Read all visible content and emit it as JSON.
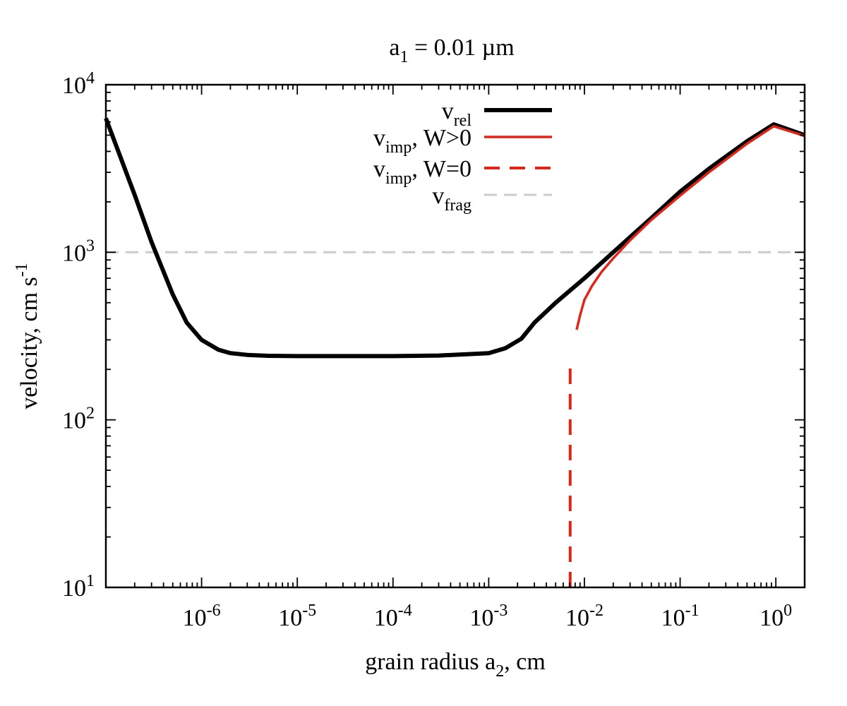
{
  "chart_data": {
    "type": "line",
    "title": {
      "base": "a",
      "sub": "1",
      "rest": " = 0.01 µm"
    },
    "xlabel": {
      "base": "grain radius a",
      "sub": "2",
      "rest": ", cm"
    },
    "ylabel": {
      "base": "velocity, cm s",
      "sup": "-1"
    },
    "xscale": "log",
    "yscale": "log",
    "xlim": [
      1e-07,
      2
    ],
    "ylim": [
      10,
      10000
    ],
    "x_ticks": [
      {
        "value": 1e-06,
        "base": "10",
        "exp": "-6"
      },
      {
        "value": 1e-05,
        "base": "10",
        "exp": "-5"
      },
      {
        "value": 0.0001,
        "base": "10",
        "exp": "-4"
      },
      {
        "value": 0.001,
        "base": "10",
        "exp": "-3"
      },
      {
        "value": 0.01,
        "base": "10",
        "exp": "-2"
      },
      {
        "value": 0.1,
        "base": "10",
        "exp": "-1"
      },
      {
        "value": 1,
        "base": "10",
        "exp": "0"
      }
    ],
    "y_ticks": [
      {
        "value": 10,
        "base": "10",
        "exp": "1"
      },
      {
        "value": 100,
        "base": "10",
        "exp": "2"
      },
      {
        "value": 1000,
        "base": "10",
        "exp": "3"
      },
      {
        "value": 10000,
        "base": "10",
        "exp": "4"
      }
    ],
    "legend_position": "top-center",
    "series": [
      {
        "name": "v_rel",
        "label": {
          "base": "v",
          "sub": "rel",
          "rest": ""
        },
        "color": "#000000",
        "style": "solid-thick",
        "x": [
          1e-07,
          2e-07,
          3e-07,
          5e-07,
          7e-07,
          1e-06,
          1.5e-06,
          2e-06,
          3e-06,
          5e-06,
          1e-05,
          3e-05,
          0.0001,
          0.0003,
          0.001,
          0.0015,
          0.0022,
          0.003,
          0.005,
          0.01,
          0.02,
          0.05,
          0.1,
          0.2,
          0.5,
          0.95,
          2.0
        ],
        "y": [
          6300,
          2200,
          1150,
          560,
          380,
          300,
          262,
          250,
          244,
          241,
          240,
          240,
          240,
          242,
          250,
          268,
          305,
          380,
          500,
          700,
          1000,
          1600,
          2300,
          3150,
          4600,
          5800,
          5000
        ]
      },
      {
        "name": "v_imp, W>0",
        "label": {
          "base": "v",
          "sub": "imp",
          "rest": ", W>0"
        },
        "color": "#e02418",
        "style": "solid",
        "x": [
          0.0083,
          0.009,
          0.01,
          0.012,
          0.015,
          0.02,
          0.03,
          0.05,
          0.1,
          0.2,
          0.5,
          0.95,
          2.0
        ],
        "y": [
          345,
          420,
          520,
          630,
          760,
          920,
          1180,
          1560,
          2180,
          3000,
          4450,
          5650,
          4950
        ]
      },
      {
        "name": "v_imp, W=0",
        "label": {
          "base": "v",
          "sub": "imp",
          "rest": ", W=0"
        },
        "color": "#e02418",
        "style": "dashed",
        "x": [
          0.0071,
          0.0071
        ],
        "y": [
          10,
          225
        ]
      },
      {
        "name": "v_frag",
        "label": {
          "base": "v",
          "sub": "frag",
          "rest": ""
        },
        "color": "#cccccc",
        "style": "dashed",
        "x": [
          1e-07,
          2.0
        ],
        "y": [
          1000,
          1000
        ]
      }
    ]
  }
}
